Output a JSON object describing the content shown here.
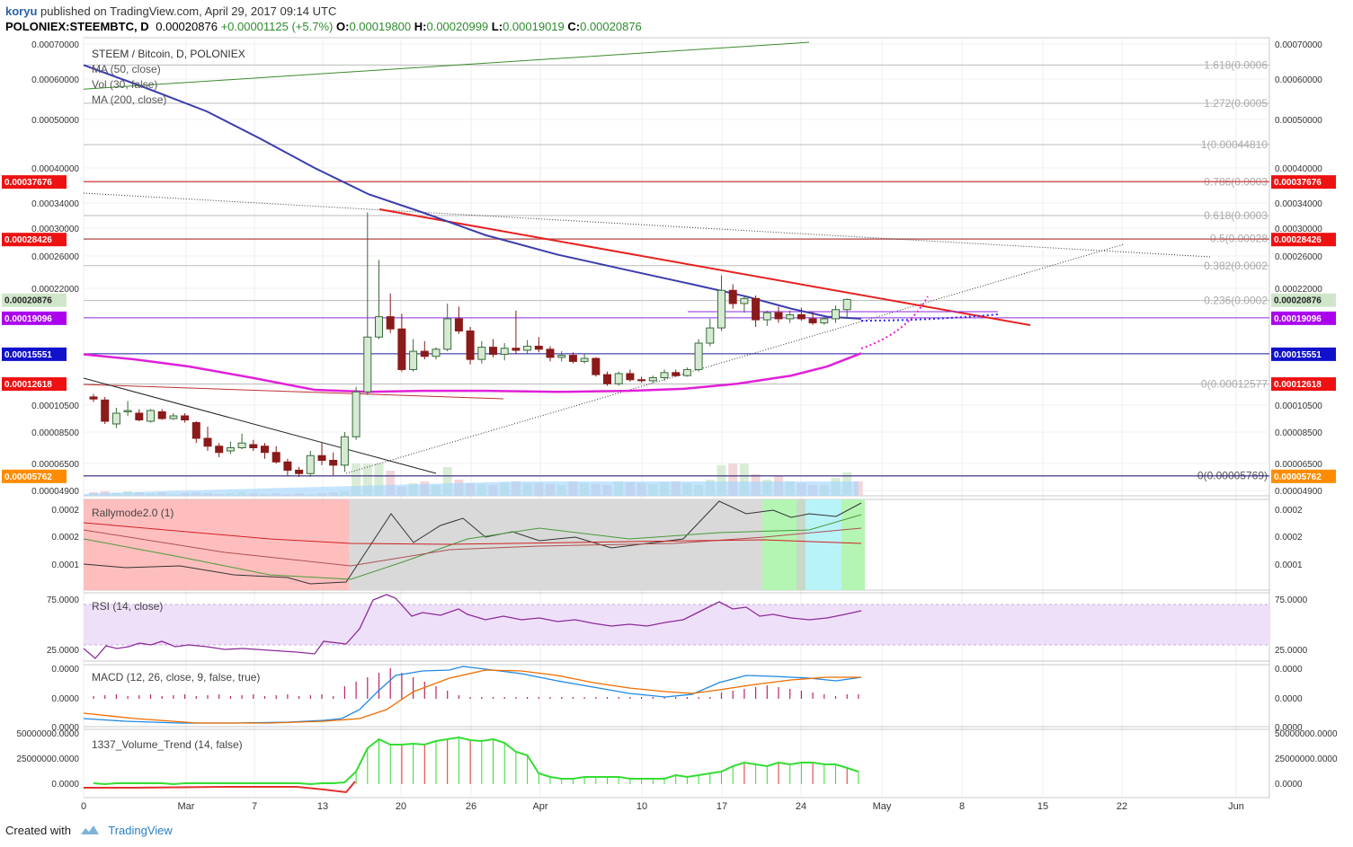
{
  "header": {
    "user": "koryu",
    "published_text": "published on TradingView.com, April 29, 2017 09:14 UTC",
    "symbol": "POLONIEX:STEEMBTC, D",
    "price": "0.00020876",
    "change": "+0.00001125 (+5.7%)",
    "o_label": "O:",
    "o_value": "0.00019800",
    "h_label": "H:",
    "h_value": "0.00020999",
    "l_label": "L:",
    "l_value": "0.00019019",
    "c_label": "C:",
    "c_value": "0.00020876"
  },
  "footer": {
    "created_with": "Created with",
    "brand": "TradingView"
  },
  "legend": {
    "title": "STEEM / Bitcoin, D, POLONIEX",
    "ma50": "MA (50, close)",
    "vol": "Vol (30, false)",
    "ma200": "MA (200, close)"
  },
  "panes": {
    "rally_title": "Rallymode2.0 (1)",
    "rsi_title": "RSI (14, close)",
    "macd_title": "MACD (12, 26, close, 9, false, true)",
    "vt_title": "1337_Volume_Trend (14, false)"
  },
  "colors": {
    "up": "#d6ead3",
    "up_border": "#3a6b3a",
    "down": "#8b1a1a",
    "ma50": "#3b3dab",
    "ma200": "#e020d8",
    "trend_red": "#e8201e",
    "green_line": "#3d8b2c",
    "macd_blue": "#1e88e5",
    "macd_orange": "#ef6c00",
    "rsi_line": "#8b2a9b",
    "vt_green": "#33dd33",
    "vt_red": "#e33030"
  },
  "chart_data": [
    {
      "type": "candlestick",
      "title": "STEEM / Bitcoin, D, POLONIEX",
      "x_ticks": [
        "0",
        "Mar",
        "7",
        "13",
        "20",
        "26",
        "Apr",
        "10",
        "17",
        "24",
        "May",
        "8",
        "15",
        "22",
        "Jun"
      ],
      "y_ticks": [
        "0.00070000",
        "0.00060000",
        "0.00050000",
        "0.00040000",
        "0.00034000",
        "0.00030000",
        "0.00026000",
        "0.00022000",
        "0.00010500",
        "0.00008500",
        "0.00006500",
        "0.00004900"
      ],
      "y_labels_left": [
        "0.00070000",
        "0.00060000",
        "0.00050000",
        "0.00040000",
        "0.00034000",
        "0.00030000",
        "0.00026000",
        "0.00022000",
        "0.00010500",
        "0.00008500",
        "0.00006500",
        "0.00004900"
      ],
      "price_badges": [
        {
          "label": "0.00037676",
          "color": "#ee1111"
        },
        {
          "label": "0.00028426",
          "color": "#ee1111"
        },
        {
          "label": "0.00020876",
          "color": "#cfe6cb"
        },
        {
          "label": "0.00019096",
          "color": "#aa00ee"
        },
        {
          "label": "0.00015551",
          "color": "#1111cc"
        },
        {
          "label": "0.00012618",
          "color": "#ee1111"
        },
        {
          "label": "0.00005762",
          "color": "#ff8c00"
        }
      ],
      "fib_levels": [
        {
          "label": "1.618(0.0006",
          "value": 0.00064
        },
        {
          "label": "1.272(0.0005",
          "value": 0.00054
        },
        {
          "label": "1(0.00044810",
          "value": 0.0004481
        },
        {
          "label": "0.786(0.0003",
          "value": 0.000376
        },
        {
          "label": "0.618(0.0003",
          "value": 0.00032
        },
        {
          "label": "0.5(0.00028",
          "value": 0.000285
        },
        {
          "label": "0.382(0.0002",
          "value": 0.000248
        },
        {
          "label": "0.236(0.0002",
          "value": 0.000208
        },
        {
          "label": "0(0.00012577",
          "value": 0.00012577
        },
        {
          "label": "0(0.00005769)",
          "value": 5.769e-05
        }
      ],
      "candles": [
        {
          "o": 0.000113,
          "h": 0.000116,
          "l": 0.000108,
          "c": 0.000111
        },
        {
          "o": 0.00011,
          "h": 0.000113,
          "l": 9.1e-05,
          "c": 9.3e-05
        },
        {
          "o": 9.1e-05,
          "h": 0.000103,
          "l": 8.8e-05,
          "c": 9.9e-05
        },
        {
          "o": 0.0001,
          "h": 0.000109,
          "l": 9.7e-05,
          "c": 0.000101
        },
        {
          "o": 9.9e-05,
          "h": 0.000102,
          "l": 9.3e-05,
          "c": 9.4e-05
        },
        {
          "o": 9.3e-05,
          "h": 0.000102,
          "l": 9.2e-05,
          "c": 0.000101
        },
        {
          "o": 0.0001,
          "h": 0.000102,
          "l": 9.4e-05,
          "c": 9.5e-05
        },
        {
          "o": 9.5e-05,
          "h": 9.9e-05,
          "l": 9.4e-05,
          "c": 9.7e-05
        },
        {
          "o": 9.7e-05,
          "h": 9.9e-05,
          "l": 9.2e-05,
          "c": 9.4e-05
        },
        {
          "o": 9.2e-05,
          "h": 9.3e-05,
          "l": 7.8e-05,
          "c": 8.1e-05
        },
        {
          "o": 8.1e-05,
          "h": 8.9e-05,
          "l": 7.3e-05,
          "c": 7.6e-05
        },
        {
          "o": 7.6e-05,
          "h": 7.8e-05,
          "l": 6.9e-05,
          "c": 7.2e-05
        },
        {
          "o": 7.3e-05,
          "h": 7.9e-05,
          "l": 7.1e-05,
          "c": 7.5e-05
        },
        {
          "o": 7.5e-05,
          "h": 8.4e-05,
          "l": 7.4e-05,
          "c": 7.8e-05
        },
        {
          "o": 7.7e-05,
          "h": 8e-05,
          "l": 7.3e-05,
          "c": 7.5e-05
        },
        {
          "o": 7.6e-05,
          "h": 7.8e-05,
          "l": 6.8e-05,
          "c": 7.2e-05
        },
        {
          "o": 7.2e-05,
          "h": 7.6e-05,
          "l": 6.5e-05,
          "c": 6.6e-05
        },
        {
          "o": 6.6e-05,
          "h": 6.8e-05,
          "l": 5.8e-05,
          "c": 6.1e-05
        },
        {
          "o": 6.1e-05,
          "h": 6.3e-05,
          "l": 5.7e-05,
          "c": 5.9e-05
        },
        {
          "o": 5.9e-05,
          "h": 7.3e-05,
          "l": 5.7e-05,
          "c": 7e-05
        },
        {
          "o": 7e-05,
          "h": 7.8e-05,
          "l": 6.4e-05,
          "c": 6.7e-05
        },
        {
          "o": 6.7e-05,
          "h": 7.2e-05,
          "l": 5.8e-05,
          "c": 6.4e-05
        },
        {
          "o": 6.4e-05,
          "h": 8.5e-05,
          "l": 6e-05,
          "c": 8.2e-05
        },
        {
          "o": 8.2e-05,
          "h": 0.000123,
          "l": 8e-05,
          "c": 0.000118
        },
        {
          "o": 0.000118,
          "h": 0.000325,
          "l": 0.000115,
          "c": 0.000172
        },
        {
          "o": 0.000172,
          "h": 0.000255,
          "l": 0.00017,
          "c": 0.000192
        },
        {
          "o": 0.000192,
          "h": 0.000215,
          "l": 0.000176,
          "c": 0.00018
        },
        {
          "o": 0.00018,
          "h": 0.000195,
          "l": 0.000138,
          "c": 0.00014
        },
        {
          "o": 0.00014,
          "h": 0.00017,
          "l": 0.000138,
          "c": 0.000158
        },
        {
          "o": 0.000158,
          "h": 0.000168,
          "l": 0.00015,
          "c": 0.000153
        },
        {
          "o": 0.000153,
          "h": 0.000162,
          "l": 0.00015,
          "c": 0.00016
        },
        {
          "o": 0.00016,
          "h": 0.000205,
          "l": 0.000158,
          "c": 0.00019
        },
        {
          "o": 0.00019,
          "h": 0.000202,
          "l": 0.000175,
          "c": 0.000178
        },
        {
          "o": 0.000178,
          "h": 0.000182,
          "l": 0.000145,
          "c": 0.00015
        },
        {
          "o": 0.00015,
          "h": 0.000168,
          "l": 0.000146,
          "c": 0.000162
        },
        {
          "o": 0.000162,
          "h": 0.00017,
          "l": 0.000152,
          "c": 0.000155
        },
        {
          "o": 0.000155,
          "h": 0.000166,
          "l": 0.000149,
          "c": 0.000161
        },
        {
          "o": 0.000161,
          "h": 0.000198,
          "l": 0.000155,
          "c": 0.000159
        },
        {
          "o": 0.000159,
          "h": 0.000169,
          "l": 0.000155,
          "c": 0.000163
        },
        {
          "o": 0.000163,
          "h": 0.000172,
          "l": 0.000157,
          "c": 0.00016
        },
        {
          "o": 0.00016,
          "h": 0.000163,
          "l": 0.000148,
          "c": 0.000152
        },
        {
          "o": 0.000152,
          "h": 0.000158,
          "l": 0.000148,
          "c": 0.000154
        },
        {
          "o": 0.000154,
          "h": 0.000157,
          "l": 0.000146,
          "c": 0.000148
        },
        {
          "o": 0.000148,
          "h": 0.000156,
          "l": 0.000146,
          "c": 0.000151
        },
        {
          "o": 0.000151,
          "h": 0.000152,
          "l": 0.000133,
          "c": 0.000135
        },
        {
          "o": 0.000135,
          "h": 0.000138,
          "l": 0.000124,
          "c": 0.000126
        },
        {
          "o": 0.000126,
          "h": 0.000138,
          "l": 0.000124,
          "c": 0.000136
        },
        {
          "o": 0.000136,
          "h": 0.00014,
          "l": 0.000128,
          "c": 0.00013
        },
        {
          "o": 0.00013,
          "h": 0.000133,
          "l": 0.000127,
          "c": 0.000129
        },
        {
          "o": 0.000129,
          "h": 0.000134,
          "l": 0.000127,
          "c": 0.000132
        },
        {
          "o": 0.000132,
          "h": 0.00014,
          "l": 0.000129,
          "c": 0.000137
        },
        {
          "o": 0.000137,
          "h": 0.00014,
          "l": 0.000133,
          "c": 0.000134
        },
        {
          "o": 0.000134,
          "h": 0.000142,
          "l": 0.000133,
          "c": 0.00014
        },
        {
          "o": 0.00014,
          "h": 0.00017,
          "l": 0.000138,
          "c": 0.000166
        },
        {
          "o": 0.000166,
          "h": 0.00019,
          "l": 0.000163,
          "c": 0.000181
        },
        {
          "o": 0.000181,
          "h": 0.000236,
          "l": 0.000178,
          "c": 0.000218
        },
        {
          "o": 0.000218,
          "h": 0.000225,
          "l": 0.0002,
          "c": 0.000205
        },
        {
          "o": 0.000205,
          "h": 0.000212,
          "l": 0.000196,
          "c": 0.00021
        },
        {
          "o": 0.00021,
          "h": 0.000213,
          "l": 0.000182,
          "c": 0.000189
        },
        {
          "o": 0.000189,
          "h": 0.000198,
          "l": 0.000183,
          "c": 0.000196
        },
        {
          "o": 0.000196,
          "h": 0.000202,
          "l": 0.000186,
          "c": 0.00019
        },
        {
          "o": 0.00019,
          "h": 0.000198,
          "l": 0.000186,
          "c": 0.000194
        },
        {
          "o": 0.000194,
          "h": 0.000201,
          "l": 0.000188,
          "c": 0.00019
        },
        {
          "o": 0.00019,
          "h": 0.000197,
          "l": 0.000184,
          "c": 0.000186
        },
        {
          "o": 0.000186,
          "h": 0.000193,
          "l": 0.000184,
          "c": 0.00019
        },
        {
          "o": 0.00019,
          "h": 0.000203,
          "l": 0.000186,
          "c": 0.000199
        },
        {
          "o": 0.000199,
          "h": 0.00021,
          "l": 0.00019,
          "c": 0.000209
        }
      ],
      "ma50": [
        0.00064,
        0.00058,
        0.00052,
        0.00046,
        0.0004,
        0.000355,
        0.000325,
        0.00029,
        0.000262,
        0.000242,
        0.000225,
        0.000212,
        0.0002,
        0.000192,
        0.00019
      ],
      "ma200": [
        0.000155,
        0.00015,
        0.000143,
        0.000132,
        0.00012,
        0.000118,
        0.000119,
        0.000119,
        0.000118,
        0.000119,
        0.000121,
        0.000126,
        0.000134,
        0.000143,
        0.000156
      ]
    },
    {
      "type": "line",
      "title": "Rallymode2.0 (1)",
      "y_ticks": [
        "0.0002",
        "0.0002",
        "0.0001"
      ]
    },
    {
      "type": "line",
      "title": "RSI (14, close)",
      "y_ticks": [
        "75.0000",
        "25.0000"
      ]
    },
    {
      "type": "line",
      "title": "MACD (12, 26, close, 9, false, true)",
      "y_ticks": [
        "0.0000",
        "0.0000",
        "0.0000"
      ]
    },
    {
      "type": "bar",
      "title": "1337_Volume_Trend (14, false)",
      "y_ticks": [
        "50000000.0000",
        "25000000.0000",
        "0.0000"
      ]
    }
  ]
}
